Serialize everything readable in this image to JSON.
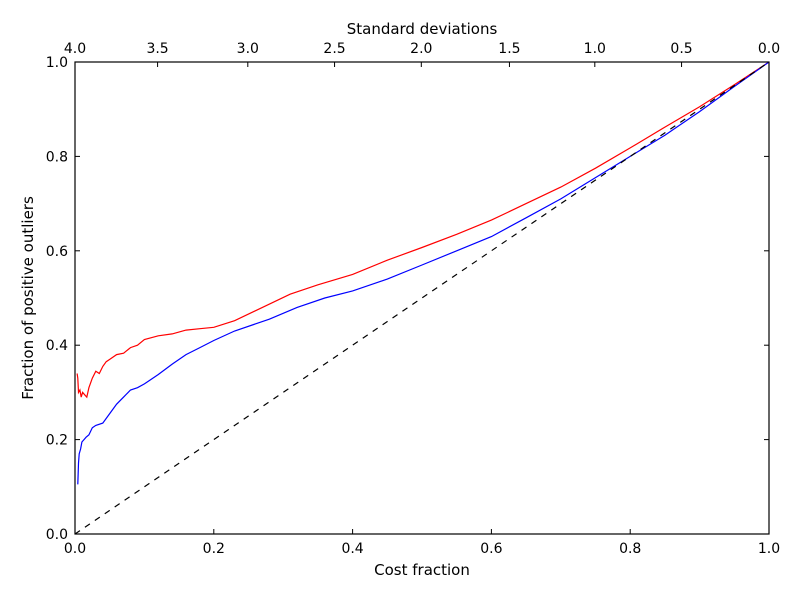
{
  "chart_data": {
    "type": "line",
    "xlabel": "Cost fraction",
    "ylabel": "Fraction of positive outliers",
    "top_xlabel": "Standard deviations",
    "xlim": [
      0.0,
      1.0
    ],
    "ylim": [
      0.0,
      1.0
    ],
    "grid": false,
    "x_ticks": [
      "0.0",
      "0.2",
      "0.4",
      "0.6",
      "0.8",
      "1.0"
    ],
    "y_ticks": [
      "0.0",
      "0.2",
      "0.4",
      "0.6",
      "0.8",
      "1.0"
    ],
    "top_ticks": [
      "4.0",
      "3.5",
      "3.0",
      "2.5",
      "2.0",
      "1.5",
      "1.0",
      "0.5",
      "0.0"
    ],
    "top_tick_positions": [
      0.0,
      0.119,
      0.249,
      0.374,
      0.499,
      0.626,
      0.749,
      0.874,
      1.0
    ],
    "colors": {
      "red": "#ff0000",
      "blue": "#0000ff",
      "diagonal": "#000000"
    },
    "series": [
      {
        "color": "red",
        "style": "solid",
        "points": [
          [
            0.003,
            0.34
          ],
          [
            0.004,
            0.33
          ],
          [
            0.005,
            0.3
          ],
          [
            0.007,
            0.305
          ],
          [
            0.009,
            0.29
          ],
          [
            0.011,
            0.3
          ],
          [
            0.014,
            0.295
          ],
          [
            0.017,
            0.29
          ],
          [
            0.02,
            0.31
          ],
          [
            0.025,
            0.33
          ],
          [
            0.03,
            0.345
          ],
          [
            0.035,
            0.34
          ],
          [
            0.04,
            0.355
          ],
          [
            0.045,
            0.365
          ],
          [
            0.05,
            0.37
          ],
          [
            0.06,
            0.38
          ],
          [
            0.07,
            0.383
          ],
          [
            0.08,
            0.395
          ],
          [
            0.09,
            0.4
          ],
          [
            0.1,
            0.412
          ],
          [
            0.12,
            0.42
          ],
          [
            0.14,
            0.424
          ],
          [
            0.16,
            0.432
          ],
          [
            0.18,
            0.435
          ],
          [
            0.2,
            0.438
          ],
          [
            0.23,
            0.452
          ],
          [
            0.27,
            0.48
          ],
          [
            0.31,
            0.508
          ],
          [
            0.35,
            0.528
          ],
          [
            0.4,
            0.55
          ],
          [
            0.45,
            0.58
          ],
          [
            0.5,
            0.607
          ],
          [
            0.55,
            0.635
          ],
          [
            0.6,
            0.665
          ],
          [
            0.65,
            0.7
          ],
          [
            0.7,
            0.735
          ],
          [
            0.75,
            0.775
          ],
          [
            0.8,
            0.818
          ],
          [
            0.85,
            0.862
          ],
          [
            0.9,
            0.905
          ],
          [
            0.95,
            0.952
          ],
          [
            1.0,
            1.0
          ]
        ]
      },
      {
        "color": "blue",
        "style": "solid",
        "points": [
          [
            0.004,
            0.105
          ],
          [
            0.005,
            0.15
          ],
          [
            0.006,
            0.17
          ],
          [
            0.008,
            0.18
          ],
          [
            0.01,
            0.195
          ],
          [
            0.013,
            0.2
          ],
          [
            0.016,
            0.205
          ],
          [
            0.02,
            0.21
          ],
          [
            0.025,
            0.225
          ],
          [
            0.03,
            0.23
          ],
          [
            0.04,
            0.235
          ],
          [
            0.05,
            0.255
          ],
          [
            0.06,
            0.275
          ],
          [
            0.07,
            0.29
          ],
          [
            0.08,
            0.305
          ],
          [
            0.09,
            0.31
          ],
          [
            0.1,
            0.318
          ],
          [
            0.12,
            0.338
          ],
          [
            0.14,
            0.36
          ],
          [
            0.16,
            0.38
          ],
          [
            0.18,
            0.395
          ],
          [
            0.2,
            0.41
          ],
          [
            0.23,
            0.43
          ],
          [
            0.28,
            0.455
          ],
          [
            0.32,
            0.48
          ],
          [
            0.36,
            0.5
          ],
          [
            0.4,
            0.515
          ],
          [
            0.45,
            0.54
          ],
          [
            0.5,
            0.57
          ],
          [
            0.55,
            0.6
          ],
          [
            0.6,
            0.63
          ],
          [
            0.65,
            0.67
          ],
          [
            0.7,
            0.71
          ],
          [
            0.75,
            0.755
          ],
          [
            0.8,
            0.8
          ],
          [
            0.85,
            0.845
          ],
          [
            0.9,
            0.895
          ],
          [
            0.95,
            0.948
          ],
          [
            1.0,
            1.0
          ]
        ]
      },
      {
        "color": "diagonal",
        "style": "dashed",
        "points": [
          [
            0.0,
            0.0
          ],
          [
            1.0,
            1.0
          ]
        ]
      }
    ]
  }
}
